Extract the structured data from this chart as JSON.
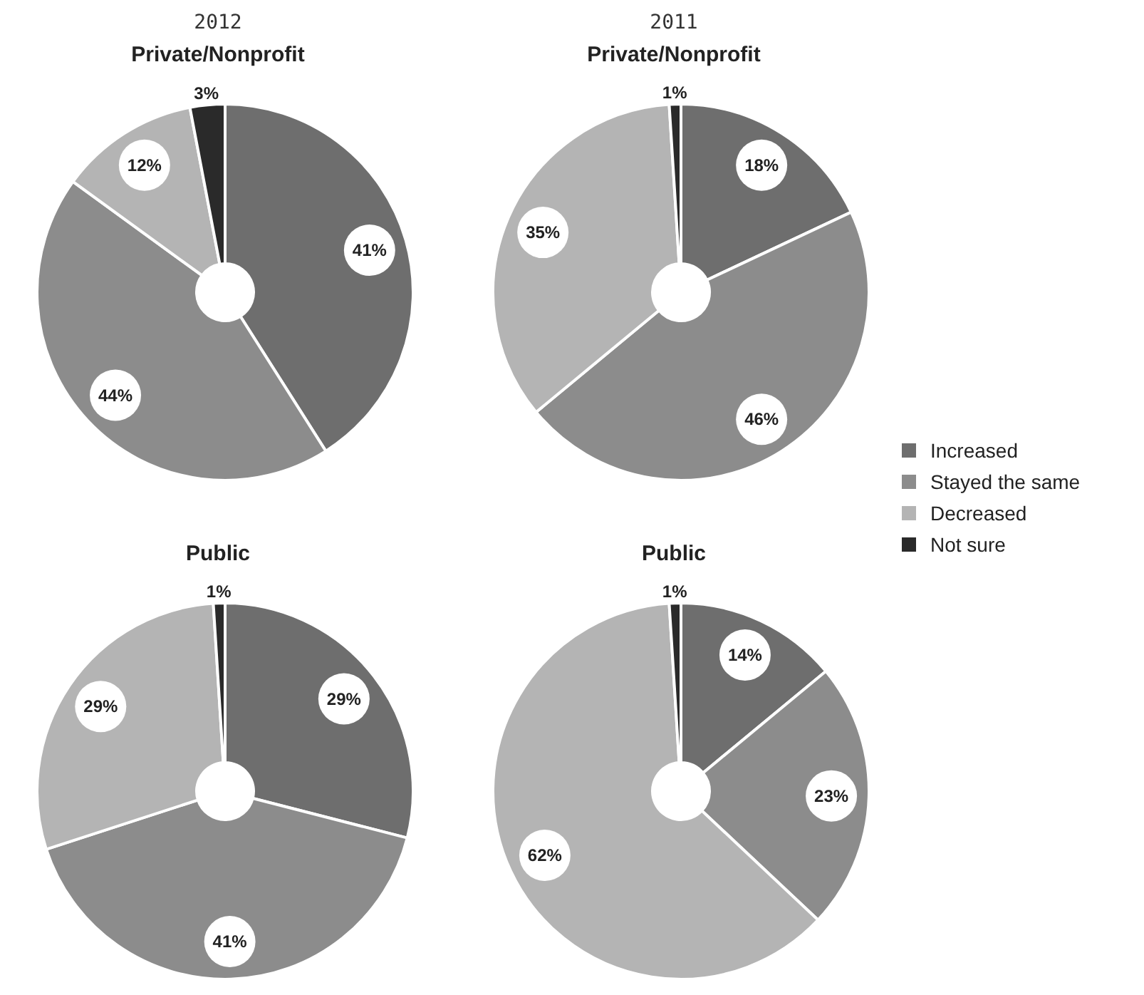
{
  "chart_data": [
    {
      "type": "donut",
      "subtitle": "2012",
      "title": "Private/Nonprofit",
      "categories": [
        null,
        null,
        null,
        null
      ],
      "values": [
        41,
        44,
        12,
        3
      ],
      "value_labels": [
        "41%",
        "44%",
        "12%",
        "3%"
      ],
      "colors": [
        "#6e6e6e",
        "#8c8c8c",
        "#b4b4b4",
        "#2a2a2a"
      ]
    },
    {
      "type": "donut",
      "subtitle": "2011",
      "title": "Private/Nonprofit",
      "categories": [
        null,
        null,
        null,
        null
      ],
      "values": [
        18,
        46,
        35,
        1
      ],
      "value_labels": [
        "18%",
        "46%",
        "35%",
        "1%"
      ],
      "colors": [
        "#6e6e6e",
        "#8c8c8c",
        "#b4b4b4",
        "#2a2a2a"
      ]
    },
    {
      "type": "donut",
      "title": "Public",
      "categories": [
        null,
        null,
        null,
        null
      ],
      "values": [
        29,
        41,
        29,
        1
      ],
      "value_labels": [
        "29%",
        "41%",
        "29%",
        "1%"
      ],
      "colors": [
        "#6e6e6e",
        "#8c8c8c",
        "#b4b4b4",
        "#2a2a2a"
      ]
    },
    {
      "type": "donut",
      "title": "Public",
      "categories": [
        "Increased",
        "Stayed the same",
        "Decreased",
        "Not sure"
      ],
      "values": [
        14,
        23,
        62,
        1
      ],
      "value_labels": [
        "14%",
        "23%",
        "62%",
        "1%"
      ],
      "colors": [
        "#6e6e6e",
        "#8c8c8c",
        "#b4b4b4",
        "#2a2a2a"
      ],
      "legend": "right"
    }
  ]
}
